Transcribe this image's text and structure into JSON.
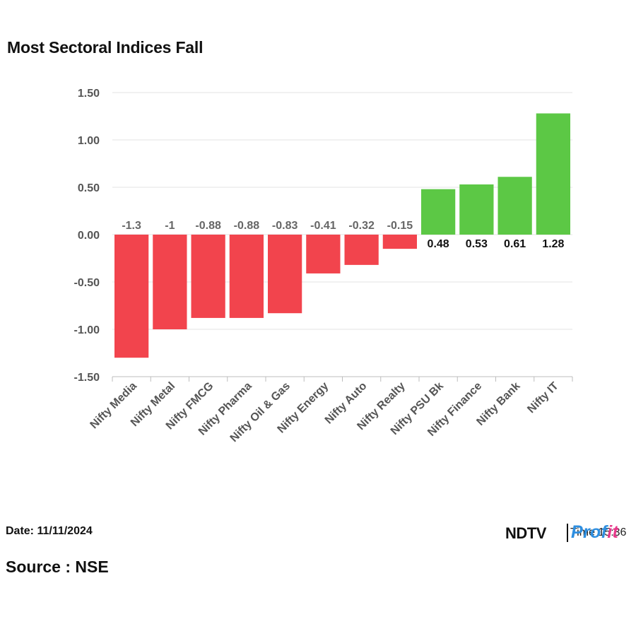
{
  "chart_data": {
    "type": "bar",
    "title": "Most Sectoral Indices Fall",
    "categories": [
      "Nifty Media",
      "Nifty Metal",
      "Nifty FMCG",
      "Nifty Pharma",
      "Nifty Oil & Gas",
      "Nifty Energy",
      "Nifty Auto",
      "Nifty Realty",
      "Nifty PSU Bk",
      "Nifty Finance",
      "Nifty Bank",
      "Nifty IT"
    ],
    "values": [
      -1.3,
      -1,
      -0.88,
      -0.88,
      -0.83,
      -0.41,
      -0.32,
      -0.15,
      0.48,
      0.53,
      0.61,
      1.28
    ],
    "data_labels": [
      "-1.3",
      "-1",
      "-0.88",
      "-0.88",
      "-0.83",
      "-0.41",
      "-0.32",
      "-0.15",
      "0.48",
      "0.53",
      "0.61",
      "1.28"
    ],
    "ylim": [
      -1.5,
      1.5
    ],
    "yticks": [
      1.5,
      1.0,
      0.5,
      0.0,
      -0.5,
      -1.0,
      -1.5
    ],
    "ytick_labels": [
      "1.50",
      "1.00",
      "0.50",
      "0.00",
      "-0.50",
      "-1.00",
      "-1.50"
    ],
    "xlabel": "",
    "ylabel": "",
    "grid": true,
    "colors": {
      "negative": "#f2444d",
      "positive": "#5cc845",
      "grid": "#e3e3e3",
      "axis": "#bdbdbd",
      "tick_label": "#555555",
      "neg_label": "#666666",
      "pos_label": "#111111"
    }
  },
  "footer": {
    "date": "Date: 11/11/2024",
    "source": "Source : NSE"
  },
  "logo": {
    "ndtv": "NDTV",
    "time_text": "Time 15:36",
    "profit_main": "Prof",
    "profit_accent": "it"
  }
}
